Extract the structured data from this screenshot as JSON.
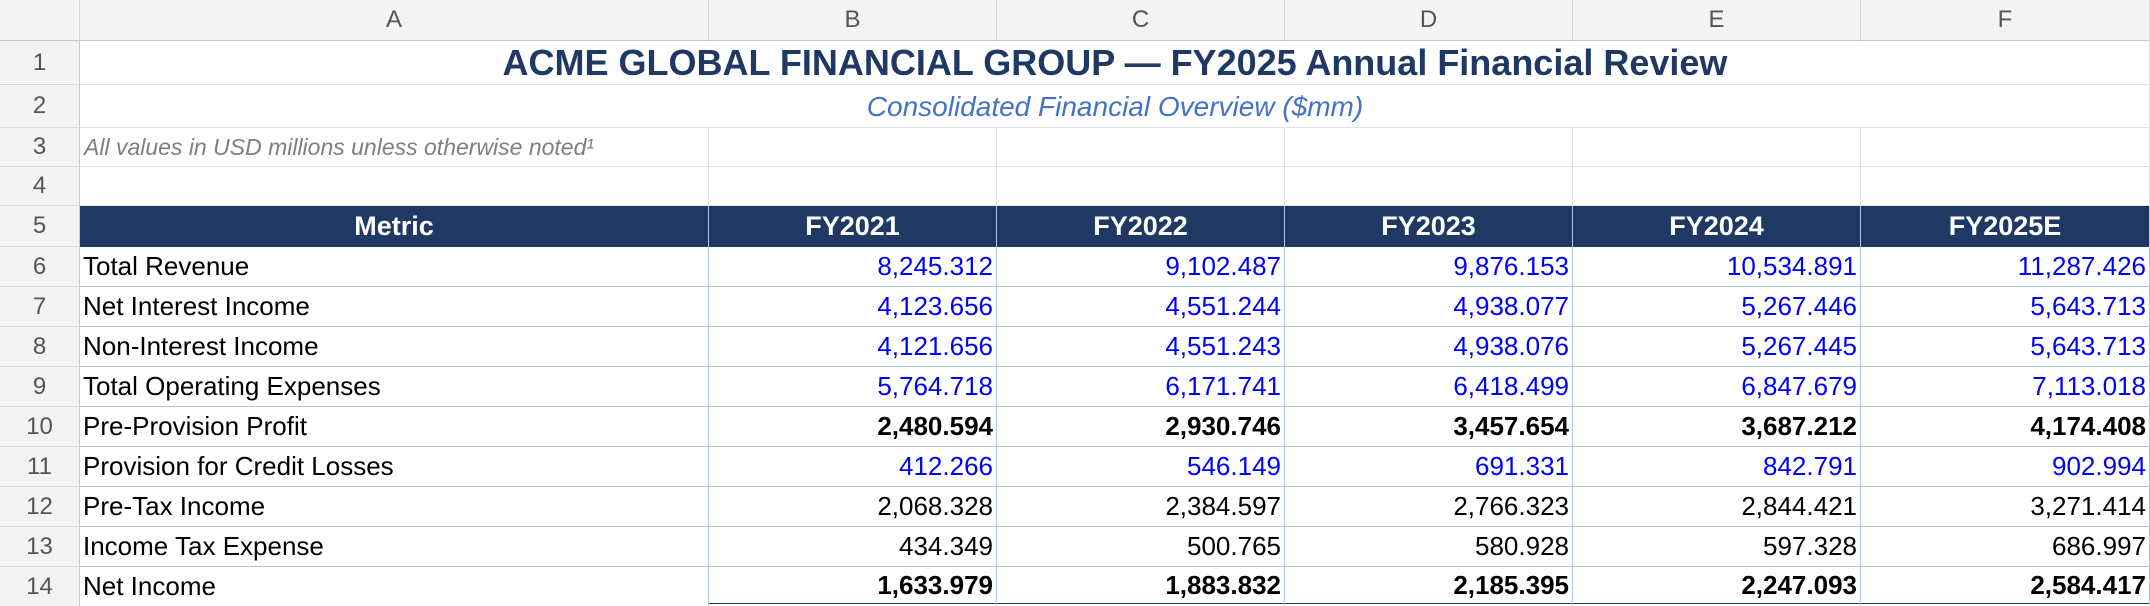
{
  "columns": [
    "A",
    "B",
    "C",
    "D",
    "E",
    "F"
  ],
  "row_numbers": [
    1,
    2,
    3,
    4,
    5,
    6,
    7,
    8,
    9,
    10,
    11,
    12,
    13,
    14
  ],
  "title": "ACME GLOBAL FINANCIAL GROUP — FY2025 Annual Financial Review",
  "subtitle": "Consolidated Financial Overview ($mm)",
  "note": "All values in USD millions unless otherwise noted¹",
  "table": {
    "header": [
      "Metric",
      "FY2021",
      "FY2022",
      "FY2023",
      "FY2024",
      "FY2025E"
    ],
    "rows": [
      [
        "Total Revenue",
        "8,245.312",
        "9,102.487",
        "9,876.153",
        "10,534.891",
        "11,287.426"
      ],
      [
        "Net Interest Income",
        "4,123.656",
        "4,551.244",
        "4,938.077",
        "5,267.446",
        "5,643.713"
      ],
      [
        "Non-Interest Income",
        "4,121.656",
        "4,551.243",
        "4,938.076",
        "5,267.445",
        "5,643.713"
      ],
      [
        "Total Operating Expenses",
        "5,764.718",
        "6,171.741",
        "6,418.499",
        "6,847.679",
        "7,113.018"
      ],
      [
        "Pre-Provision Profit",
        "2,480.594",
        "2,930.746",
        "3,457.654",
        "3,687.212",
        "4,174.408"
      ],
      [
        "Provision for Credit Losses",
        "412.266",
        "546.149",
        "691.331",
        "842.791",
        "902.994"
      ],
      [
        "Pre-Tax Income",
        "2,068.328",
        "2,384.597",
        "2,766.323",
        "2,844.421",
        "3,271.414"
      ],
      [
        "Income Tax Expense",
        "434.349",
        "500.765",
        "580.928",
        "597.328",
        "686.997"
      ],
      [
        "Net Income",
        "1,633.979",
        "1,883.832",
        "2,185.395",
        "2,247.093",
        "2,584.417"
      ]
    ]
  }
}
